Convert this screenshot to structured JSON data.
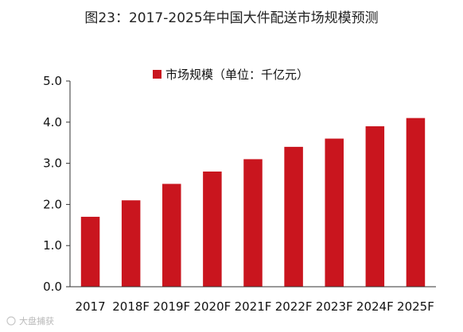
{
  "chart_data": {
    "type": "bar",
    "title": "图23：2017-2025年中国大件配送市场规模预测",
    "categories": [
      "2017",
      "2018F",
      "2019F",
      "2020F",
      "2021F",
      "2022F",
      "2023F",
      "2024F",
      "2025F"
    ],
    "series": [
      {
        "name": "市场规模（单位：千亿元）",
        "values": [
          1.7,
          2.1,
          2.5,
          2.8,
          3.1,
          3.4,
          3.6,
          3.9,
          4.1
        ]
      }
    ],
    "ylim": [
      0,
      5
    ],
    "yticks": [
      "0.0",
      "1.0",
      "2.0",
      "3.0",
      "4.0",
      "5.0"
    ],
    "legend_position": "top-center",
    "grid": false,
    "bar_color": "#c9151e"
  },
  "watermark": {
    "text": "大盘捕获"
  }
}
